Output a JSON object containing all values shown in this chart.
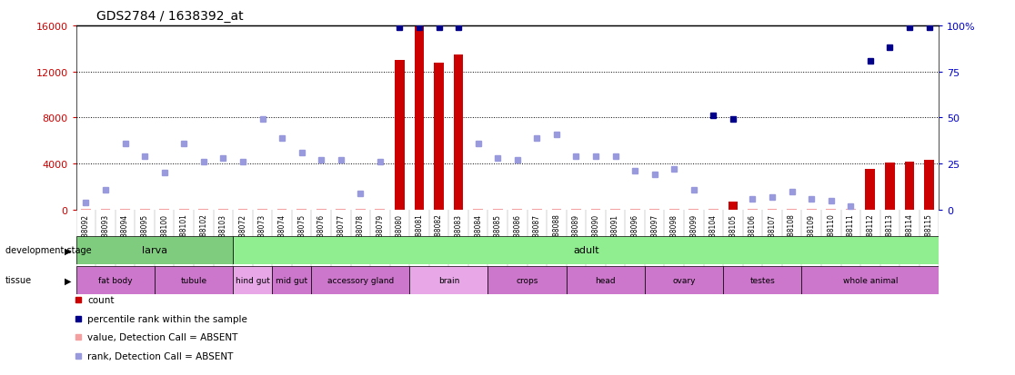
{
  "title": "GDS2784 / 1638392_at",
  "samples": [
    "GSM188092",
    "GSM188093",
    "GSM188094",
    "GSM188095",
    "GSM188100",
    "GSM188101",
    "GSM188102",
    "GSM188103",
    "GSM188072",
    "GSM188073",
    "GSM188074",
    "GSM188075",
    "GSM188076",
    "GSM188077",
    "GSM188078",
    "GSM188079",
    "GSM188080",
    "GSM188081",
    "GSM188082",
    "GSM188083",
    "GSM188084",
    "GSM188085",
    "GSM188086",
    "GSM188087",
    "GSM188088",
    "GSM188089",
    "GSM188090",
    "GSM188091",
    "GSM188096",
    "GSM188097",
    "GSM188098",
    "GSM188099",
    "GSM188104",
    "GSM188105",
    "GSM188106",
    "GSM188107",
    "GSM188108",
    "GSM188109",
    "GSM188110",
    "GSM188111",
    "GSM188112",
    "GSM188113",
    "GSM188114",
    "GSM188115"
  ],
  "count_values": [
    50,
    50,
    50,
    50,
    50,
    50,
    50,
    50,
    50,
    50,
    50,
    50,
    50,
    50,
    50,
    50,
    13000,
    16000,
    12800,
    13500,
    50,
    50,
    50,
    50,
    50,
    50,
    50,
    50,
    50,
    50,
    50,
    50,
    50,
    700,
    50,
    50,
    50,
    50,
    50,
    50,
    3500,
    4100,
    4200,
    4300
  ],
  "count_absent": [
    true,
    true,
    true,
    true,
    true,
    true,
    true,
    true,
    true,
    true,
    true,
    true,
    true,
    true,
    true,
    true,
    false,
    false,
    false,
    false,
    true,
    true,
    true,
    true,
    true,
    true,
    true,
    true,
    true,
    true,
    true,
    true,
    true,
    false,
    true,
    true,
    true,
    true,
    true,
    true,
    false,
    false,
    false,
    false
  ],
  "rank_values": [
    4,
    11,
    36,
    29,
    20,
    36,
    26,
    28,
    26,
    49,
    39,
    31,
    27,
    27,
    9,
    26,
    99,
    99,
    99,
    99,
    36,
    28,
    27,
    39,
    41,
    29,
    29,
    29,
    21,
    19,
    22,
    11,
    51,
    49,
    6,
    7,
    10,
    6,
    5,
    2,
    81,
    88,
    99,
    99
  ],
  "rank_absent": [
    true,
    true,
    true,
    true,
    true,
    true,
    true,
    true,
    true,
    true,
    true,
    true,
    true,
    true,
    true,
    true,
    false,
    false,
    false,
    false,
    true,
    true,
    true,
    true,
    true,
    true,
    true,
    true,
    true,
    true,
    true,
    true,
    false,
    false,
    true,
    true,
    true,
    true,
    true,
    true,
    false,
    false,
    false,
    false
  ],
  "dev_stage_groups": [
    {
      "label": "larva",
      "start": 0,
      "end": 8,
      "color": "#7fcc7f"
    },
    {
      "label": "adult",
      "start": 8,
      "end": 44,
      "color": "#90ee90"
    }
  ],
  "tissue_groups": [
    {
      "label": "fat body",
      "start": 0,
      "end": 4,
      "color": "#cc77cc"
    },
    {
      "label": "tubule",
      "start": 4,
      "end": 8,
      "color": "#cc77cc"
    },
    {
      "label": "hind gut",
      "start": 8,
      "end": 10,
      "color": "#e8a8e8"
    },
    {
      "label": "mid gut",
      "start": 10,
      "end": 12,
      "color": "#cc77cc"
    },
    {
      "label": "accessory gland",
      "start": 12,
      "end": 17,
      "color": "#cc77cc"
    },
    {
      "label": "brain",
      "start": 17,
      "end": 21,
      "color": "#e8a8e8"
    },
    {
      "label": "crops",
      "start": 21,
      "end": 25,
      "color": "#cc77cc"
    },
    {
      "label": "head",
      "start": 25,
      "end": 29,
      "color": "#cc77cc"
    },
    {
      "label": "ovary",
      "start": 29,
      "end": 33,
      "color": "#cc77cc"
    },
    {
      "label": "testes",
      "start": 33,
      "end": 37,
      "color": "#cc77cc"
    },
    {
      "label": "whole animal",
      "start": 37,
      "end": 44,
      "color": "#cc77cc"
    }
  ],
  "ylim_left": [
    0,
    16000
  ],
  "ylim_right": [
    0,
    100
  ],
  "yticks_left": [
    0,
    4000,
    8000,
    12000,
    16000
  ],
  "yticks_right": [
    0,
    25,
    50,
    75,
    100
  ],
  "count_color": "#cc0000",
  "count_absent_color": "#f4a0a0",
  "rank_color": "#00008b",
  "rank_absent_color": "#9999dd",
  "left_label_color": "#cc0000",
  "right_label_color": "#0000cc",
  "bar_width": 0.5
}
